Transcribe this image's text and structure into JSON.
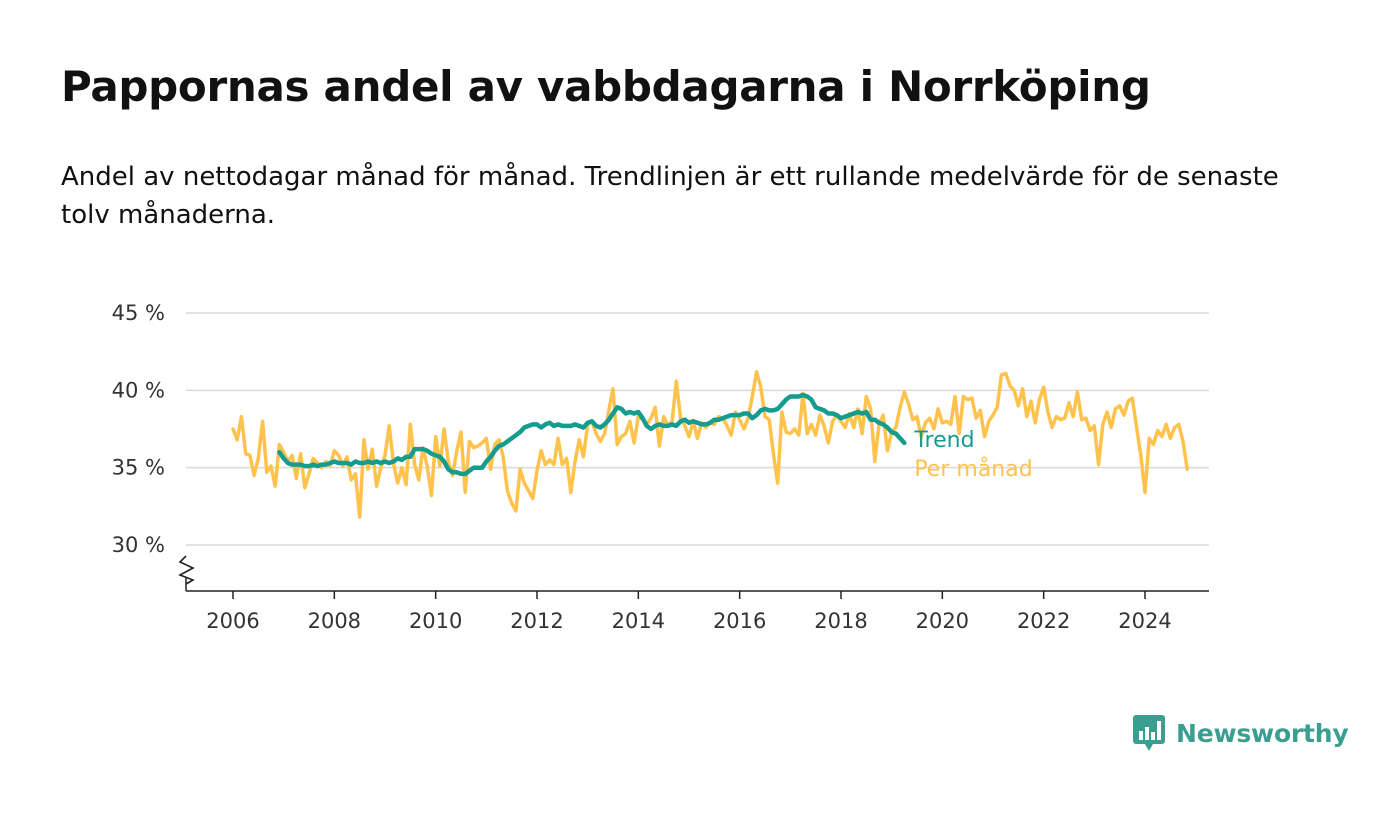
{
  "header": {
    "title": "Pappornas andel av vabbdagarna i Norrköping",
    "subtitle": "Andel av nettodagar månad för månad. Trendlinjen är ett rullande medelvärde för de senaste tolv månaderna."
  },
  "brand": {
    "name": "Newsworthy",
    "icon": "newsworthy-logo-icon",
    "color": "#3a9e91"
  },
  "chart_data": {
    "type": "line",
    "title": "Pappornas andel av vabbdagarna i Norrköping",
    "xlabel": "",
    "ylabel": "",
    "xlim": [
      2005.7,
      2025.3
    ],
    "ylim": [
      27,
      45
    ],
    "y_ticks": [
      30,
      35,
      40,
      45
    ],
    "y_tick_labels": [
      "30 %",
      "35 %",
      "40 %",
      "45 %"
    ],
    "x_ticks": [
      2006,
      2008,
      2010,
      2012,
      2014,
      2016,
      2018,
      2020,
      2022,
      2024
    ],
    "x_tick_labels": [
      "2006",
      "2008",
      "2010",
      "2012",
      "2014",
      "2016",
      "2018",
      "2020",
      "2022",
      "2024"
    ],
    "axis_break": true,
    "grid": "horizontal",
    "legend": "direct labels at line ends (right)",
    "series": [
      {
        "name": "Per månad",
        "color": "#ffc34d",
        "x_start": 2006.0,
        "step": 0.083333,
        "values": [
          37.5,
          36.8,
          38.3,
          35.9,
          35.8,
          34.5,
          35.6,
          38.0,
          34.7,
          35.1,
          33.8,
          36.5,
          36.0,
          35.4,
          35.8,
          34.3,
          35.9,
          33.7,
          34.6,
          35.6,
          35.3,
          35.0,
          35.4,
          35.1,
          36.1,
          35.8,
          35.1,
          35.7,
          34.2,
          34.6,
          31.8,
          36.8,
          34.9,
          36.2,
          33.8,
          35.0,
          35.8,
          37.7,
          35.3,
          34.0,
          35.0,
          33.9,
          37.8,
          35.2,
          34.2,
          36.3,
          35.1,
          33.2,
          37.0,
          35.1,
          37.5,
          35.4,
          34.5,
          36.1,
          37.3,
          33.4,
          36.7,
          36.3,
          36.4,
          36.6,
          36.9,
          34.9,
          36.5,
          36.8,
          35.7,
          33.5,
          32.7,
          32.2,
          34.9,
          34.0,
          33.5,
          33.0,
          34.8,
          36.1,
          35.2,
          35.5,
          35.2,
          36.9,
          35.2,
          35.6,
          33.4,
          35.4,
          36.8,
          35.7,
          37.8,
          38.0,
          37.2,
          36.7,
          37.2,
          38.7,
          40.1,
          36.5,
          37.0,
          37.2,
          38.0,
          36.6,
          38.3,
          38.1,
          37.8,
          38.2,
          38.9,
          36.4,
          38.3,
          37.7,
          38.0,
          40.6,
          38.2,
          37.7,
          37.0,
          38.0,
          36.9,
          37.9,
          37.6,
          37.9,
          37.8,
          38.3,
          38.2,
          37.7,
          37.1,
          38.6,
          38.1,
          37.5,
          38.2,
          39.6,
          41.2,
          40.2,
          38.3,
          38.1,
          35.9,
          34.0,
          38.6,
          37.3,
          37.2,
          37.5,
          37.1,
          39.8,
          37.2,
          37.8,
          37.1,
          38.4,
          37.7,
          36.6,
          38.0,
          38.4,
          38.0,
          37.6,
          38.5,
          37.6,
          38.8,
          37.2,
          39.6,
          38.8,
          35.4,
          37.8,
          38.4,
          36.1,
          37.3,
          37.6,
          38.9,
          39.9,
          39.1,
          38.1,
          38.3,
          37.0,
          37.9,
          38.2,
          37.5,
          38.8,
          37.9,
          38.0,
          37.8,
          39.6,
          37.2,
          39.6,
          39.4,
          39.5,
          38.2,
          38.7,
          37.0,
          38.0,
          38.4,
          38.9,
          41.0,
          41.1,
          40.3,
          40.0,
          39.0,
          40.1,
          38.3,
          39.3,
          37.9,
          39.4,
          40.2,
          38.6,
          37.6,
          38.3,
          38.1,
          38.2,
          39.2,
          38.3,
          39.9,
          38.1,
          38.2,
          37.4,
          37.7,
          35.2,
          37.8,
          38.6,
          37.6,
          38.8,
          39.0,
          38.4,
          39.3,
          39.5,
          37.6,
          35.8,
          33.4,
          36.9,
          36.5,
          37.4,
          37.0,
          37.8,
          36.9,
          37.6,
          37.8,
          36.7,
          34.9
        ]
      },
      {
        "name": "Trend",
        "color": "#159c8e",
        "x_start": 2006.9167,
        "step": 0.083333,
        "values": [
          36.0,
          35.6,
          35.3,
          35.2,
          35.2,
          35.2,
          35.1,
          35.1,
          35.2,
          35.1,
          35.2,
          35.2,
          35.3,
          35.4,
          35.3,
          35.3,
          35.3,
          35.2,
          35.4,
          35.3,
          35.3,
          35.4,
          35.3,
          35.4,
          35.3,
          35.4,
          35.3,
          35.4,
          35.6,
          35.5,
          35.7,
          35.7,
          36.2,
          36.2,
          36.2,
          36.1,
          35.9,
          35.8,
          35.7,
          35.4,
          34.9,
          34.7,
          34.7,
          34.6,
          34.6,
          34.8,
          35.0,
          35.0,
          35.0,
          35.4,
          35.7,
          36.1,
          36.4,
          36.5,
          36.7,
          36.9,
          37.1,
          37.3,
          37.6,
          37.7,
          37.8,
          37.8,
          37.6,
          37.8,
          37.9,
          37.7,
          37.8,
          37.7,
          37.7,
          37.7,
          37.8,
          37.7,
          37.6,
          37.9,
          38.0,
          37.7,
          37.6,
          37.8,
          38.1,
          38.5,
          38.9,
          38.8,
          38.5,
          38.6,
          38.5,
          38.6,
          38.2,
          37.7,
          37.5,
          37.7,
          37.8,
          37.7,
          37.7,
          37.8,
          37.7,
          38.0,
          38.1,
          37.9,
          38.0,
          37.9,
          37.8,
          37.8,
          37.9,
          38.1,
          38.1,
          38.2,
          38.3,
          38.4,
          38.4,
          38.4,
          38.5,
          38.5,
          38.2,
          38.4,
          38.7,
          38.8,
          38.7,
          38.7,
          38.8,
          39.1,
          39.4,
          39.6,
          39.6,
          39.6,
          39.7,
          39.6,
          39.4,
          38.9,
          38.8,
          38.7,
          38.5,
          38.5,
          38.4,
          38.2,
          38.3,
          38.4,
          38.5,
          38.6,
          38.5,
          38.6,
          38.1,
          38.1,
          37.9,
          37.8,
          37.6,
          37.3,
          37.2,
          36.9,
          36.6
        ]
      }
    ]
  }
}
